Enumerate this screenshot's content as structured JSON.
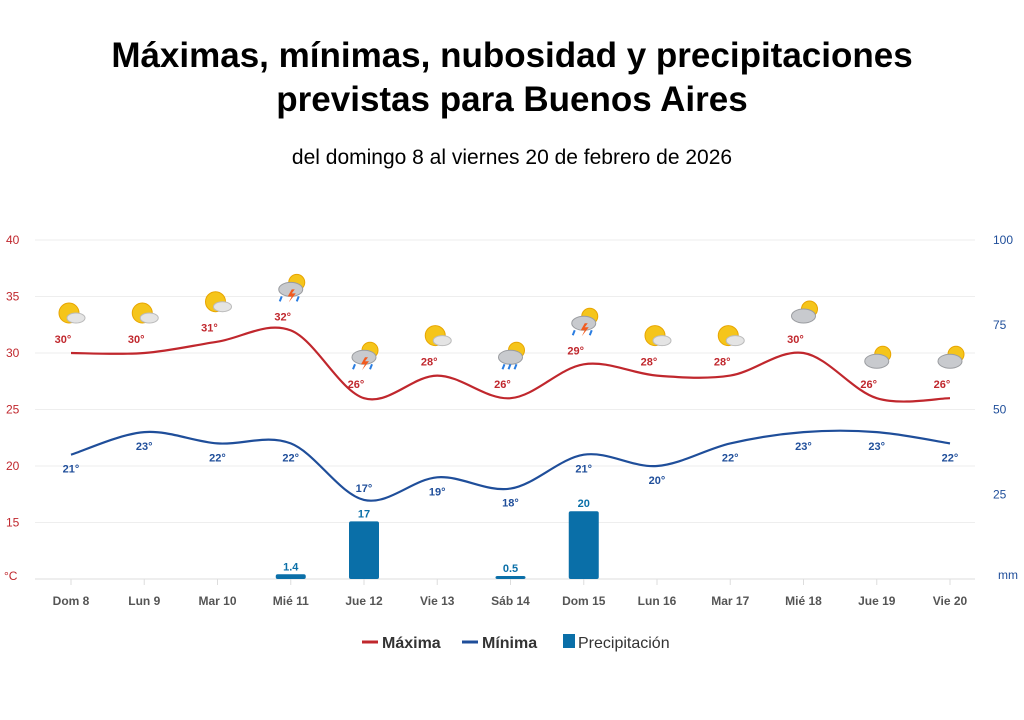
{
  "title_line1": "Máximas, mínimas, nubosidad  y precipitaciones",
  "title_line2": "previstas para Buenos Aires",
  "subtitle": "del domingo 8 al viernes 20 de febrero de 2026",
  "chart_data": {
    "type": "line",
    "categories": [
      "Dom 8",
      "Lun 9",
      "Mar 10",
      "Mié 11",
      "Jue 12",
      "Vie 13",
      "Sáb 14",
      "Dom 15",
      "Lun 16",
      "Mar 17",
      "Mié 18",
      "Jue 19",
      "Vie 20"
    ],
    "icons": [
      "partly-sunny",
      "partly-sunny",
      "partly-sunny",
      "thunderstorm",
      "thunderstorm",
      "partly-sunny",
      "rain",
      "thunderstorm",
      "partly-sunny",
      "partly-sunny",
      "mostly-cloudy",
      "mostly-cloudy",
      "mostly-cloudy"
    ],
    "series": [
      {
        "name": "Máxima",
        "type": "line",
        "axis": "left",
        "color": "#c0272d",
        "values": [
          30,
          30,
          31,
          32,
          26,
          28,
          26,
          29,
          28,
          28,
          30,
          26,
          26
        ]
      },
      {
        "name": "Mínima",
        "type": "line",
        "axis": "left",
        "color": "#1f4e9a",
        "values": [
          21,
          23,
          22,
          22,
          17,
          19,
          18,
          21,
          20,
          22,
          23,
          23,
          22
        ]
      },
      {
        "name": "Precipitación",
        "type": "bar",
        "axis": "right",
        "color": "#0a6fa8",
        "values": [
          null,
          null,
          null,
          1.4,
          17,
          null,
          0.5,
          20,
          null,
          null,
          null,
          null,
          null
        ],
        "labels": [
          "",
          "",
          "",
          "1.4",
          "17",
          "",
          "0.5",
          "20",
          "",
          "",
          "",
          "",
          ""
        ]
      }
    ],
    "left_axis": {
      "unit": "°C",
      "range": [
        10,
        40
      ],
      "ticks": [
        "40",
        "35",
        "30",
        "25",
        "20",
        "15"
      ],
      "color": "#c0272d"
    },
    "right_axis": {
      "unit": "mm",
      "range": [
        0,
        100
      ],
      "ticks": [
        "100",
        "75",
        "50",
        "25"
      ],
      "color": "#1f4e9a"
    },
    "grid": true,
    "legend": "bottom-center"
  }
}
